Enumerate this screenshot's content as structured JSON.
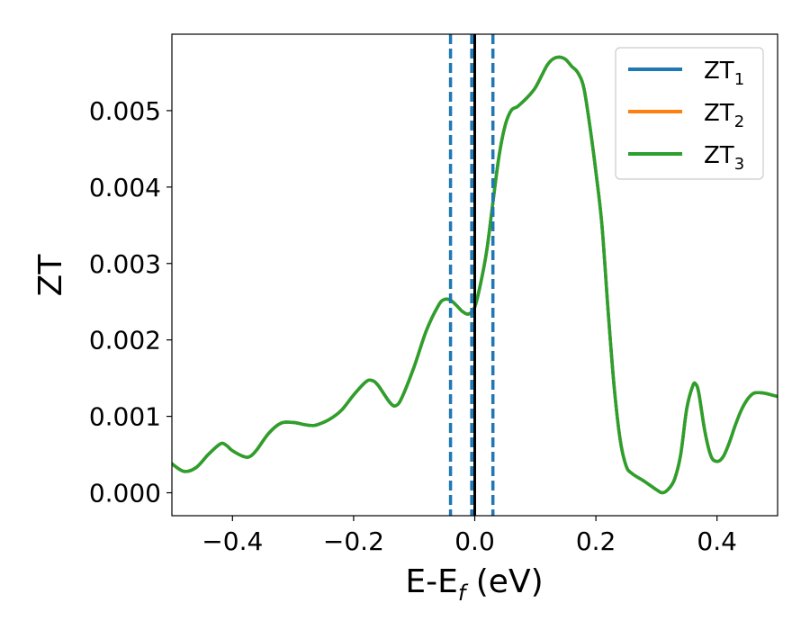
{
  "chart_data": {
    "type": "line",
    "xlabel": "E-E",
    "xlabel_sub": "f",
    "xlabel_unit": " (eV)",
    "ylabel": "ZT",
    "xlim": [
      -0.5,
      0.5
    ],
    "ylim": [
      -0.0003,
      0.006
    ],
    "x_ticks": [
      -0.4,
      -0.2,
      0.0,
      0.2,
      0.4
    ],
    "x_tick_labels": [
      "−0.4",
      "−0.2",
      "0.0",
      "0.2",
      "0.4"
    ],
    "y_ticks": [
      0.0,
      0.001,
      0.002,
      0.003,
      0.004,
      0.005
    ],
    "y_tick_labels": [
      "0.000",
      "0.001",
      "0.002",
      "0.003",
      "0.004",
      "0.005"
    ],
    "grid": false,
    "legend_position": "top-right",
    "vertical_lines": [
      {
        "x": -0.04,
        "style": "dashed",
        "color": "#1f77b4"
      },
      {
        "x": -0.005,
        "style": "dashed",
        "color": "#1f77b4"
      },
      {
        "x": 0.0,
        "style": "solid",
        "color": "#000000"
      },
      {
        "x": 0.03,
        "style": "dashed",
        "color": "#1f77b4"
      }
    ],
    "x": [
      -0.5,
      -0.48,
      -0.46,
      -0.44,
      -0.42,
      -0.41,
      -0.4,
      -0.38,
      -0.37,
      -0.36,
      -0.34,
      -0.32,
      -0.3,
      -0.28,
      -0.27,
      -0.26,
      -0.24,
      -0.22,
      -0.2,
      -0.18,
      -0.17,
      -0.16,
      -0.14,
      -0.13,
      -0.12,
      -0.1,
      -0.08,
      -0.06,
      -0.05,
      -0.04,
      -0.03,
      -0.02,
      -0.01,
      0.0,
      0.01,
      0.02,
      0.03,
      0.04,
      0.05,
      0.06,
      0.07,
      0.08,
      0.09,
      0.1,
      0.11,
      0.12,
      0.13,
      0.14,
      0.15,
      0.16,
      0.17,
      0.18,
      0.19,
      0.2,
      0.21,
      0.22,
      0.23,
      0.24,
      0.25,
      0.26,
      0.28,
      0.3,
      0.31,
      0.32,
      0.33,
      0.34,
      0.35,
      0.36,
      0.365,
      0.37,
      0.38,
      0.39,
      0.4,
      0.41,
      0.42,
      0.43,
      0.44,
      0.45,
      0.46,
      0.47,
      0.48,
      0.49,
      0.5
    ],
    "series": [
      {
        "name": "ZT",
        "name_sub": "1",
        "color": "#1f77b4",
        "values": [
          0.00038,
          0.00028,
          0.00033,
          0.0005,
          0.00064,
          0.00062,
          0.00055,
          0.00047,
          0.00048,
          0.00056,
          0.00078,
          0.00091,
          0.00092,
          0.00089,
          0.00088,
          0.00089,
          0.00096,
          0.00108,
          0.00128,
          0.00145,
          0.00147,
          0.00141,
          0.00118,
          0.00114,
          0.00125,
          0.00165,
          0.00212,
          0.00245,
          0.00253,
          0.00252,
          0.00245,
          0.00237,
          0.00234,
          0.00243,
          0.00275,
          0.00318,
          0.0038,
          0.0044,
          0.0048,
          0.005,
          0.00505,
          0.00512,
          0.0052,
          0.0053,
          0.00545,
          0.0056,
          0.00568,
          0.0057,
          0.00567,
          0.00558,
          0.0055,
          0.0053,
          0.0048,
          0.0042,
          0.0035,
          0.0024,
          0.0014,
          0.0007,
          0.00035,
          0.00025,
          0.00015,
          4e-05,
          0.0,
          5e-05,
          0.00018,
          0.0005,
          0.0011,
          0.0014,
          0.00142,
          0.0013,
          0.0008,
          0.00048,
          0.00041,
          0.00047,
          0.00065,
          0.00088,
          0.00108,
          0.00122,
          0.0013,
          0.00131,
          0.0013,
          0.00128,
          0.00126
        ]
      },
      {
        "name": "ZT",
        "name_sub": "2",
        "color": "#ff7f0e",
        "values": [
          0.00038,
          0.00028,
          0.00033,
          0.0005,
          0.00064,
          0.00062,
          0.00055,
          0.00047,
          0.00048,
          0.00056,
          0.00078,
          0.00091,
          0.00092,
          0.00089,
          0.00088,
          0.00089,
          0.00096,
          0.00108,
          0.00128,
          0.00145,
          0.00147,
          0.00141,
          0.00118,
          0.00114,
          0.00125,
          0.00165,
          0.00212,
          0.00245,
          0.00253,
          0.00252,
          0.00245,
          0.00237,
          0.00234,
          0.00243,
          0.00275,
          0.00318,
          0.0038,
          0.0044,
          0.0048,
          0.005,
          0.00505,
          0.00512,
          0.0052,
          0.0053,
          0.00545,
          0.0056,
          0.00568,
          0.0057,
          0.00567,
          0.00558,
          0.0055,
          0.0053,
          0.0048,
          0.0042,
          0.0035,
          0.0024,
          0.0014,
          0.0007,
          0.00035,
          0.00025,
          0.00015,
          4e-05,
          0.0,
          5e-05,
          0.00018,
          0.0005,
          0.0011,
          0.0014,
          0.00142,
          0.0013,
          0.0008,
          0.00048,
          0.00041,
          0.00047,
          0.00065,
          0.00088,
          0.00108,
          0.00122,
          0.0013,
          0.00131,
          0.0013,
          0.00128,
          0.00126
        ]
      },
      {
        "name": "ZT",
        "name_sub": "3",
        "color": "#2ca02c",
        "values": [
          0.00038,
          0.00028,
          0.00033,
          0.0005,
          0.00064,
          0.00062,
          0.00055,
          0.00047,
          0.00048,
          0.00056,
          0.00078,
          0.00091,
          0.00092,
          0.00089,
          0.00088,
          0.00089,
          0.00096,
          0.00108,
          0.00128,
          0.00145,
          0.00147,
          0.00141,
          0.00118,
          0.00114,
          0.00125,
          0.00165,
          0.00212,
          0.00245,
          0.00253,
          0.00252,
          0.00245,
          0.00237,
          0.00234,
          0.00243,
          0.00275,
          0.00318,
          0.0038,
          0.0044,
          0.0048,
          0.005,
          0.00505,
          0.00512,
          0.0052,
          0.0053,
          0.00545,
          0.0056,
          0.00568,
          0.0057,
          0.00567,
          0.00558,
          0.0055,
          0.0053,
          0.0048,
          0.0042,
          0.0035,
          0.0024,
          0.0014,
          0.0007,
          0.00035,
          0.00025,
          0.00015,
          4e-05,
          0.0,
          5e-05,
          0.00018,
          0.0005,
          0.0011,
          0.0014,
          0.00142,
          0.0013,
          0.0008,
          0.00048,
          0.00041,
          0.00047,
          0.00065,
          0.00088,
          0.00108,
          0.00122,
          0.0013,
          0.00131,
          0.0013,
          0.00128,
          0.00126
        ]
      }
    ]
  }
}
